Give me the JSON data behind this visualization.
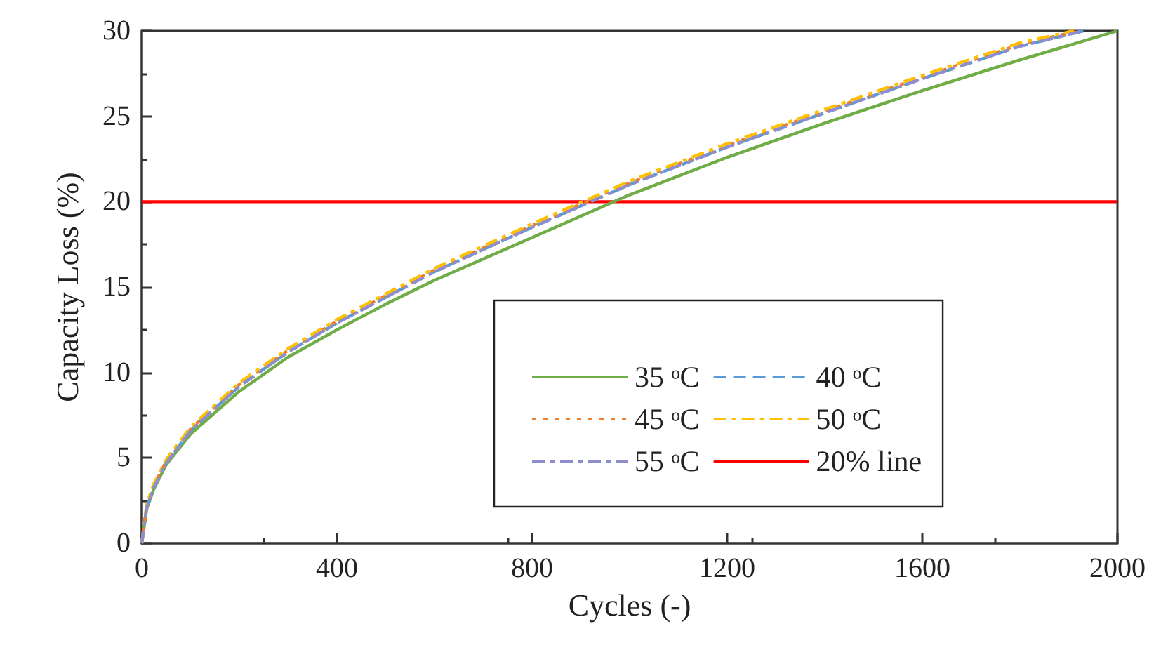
{
  "chart_data": {
    "type": "line",
    "xlabel": "Cycles (-)",
    "ylabel": "Capacity Loss (%)",
    "xlim": [
      0,
      2000
    ],
    "xticks": [
      0,
      400,
      800,
      1200,
      1600,
      2000
    ],
    "ylim": [
      0,
      30
    ],
    "yticks": [
      0,
      5,
      10,
      15,
      20,
      25,
      30
    ],
    "grid": false,
    "legend": "bottom right",
    "marker": "none",
    "series": [
      {
        "name": "35 ᵒC",
        "color": "#70ad47",
        "line_style": "solid",
        "x": [
          0,
          10,
          25,
          50,
          100,
          200,
          300,
          400,
          500,
          600,
          800,
          1000,
          1200,
          1400,
          1600,
          1800,
          2000
        ],
        "values": [
          0,
          2.0,
          3.2,
          4.6,
          6.4,
          8.9,
          10.9,
          12.5,
          14.0,
          15.4,
          17.9,
          20.4,
          22.6,
          24.6,
          26.5,
          28.3,
          30
        ]
      },
      {
        "name": "40 ᵒC",
        "color": "#5b9bd5",
        "line_style": "dashed",
        "x": [
          0,
          10,
          25,
          50,
          100,
          200,
          300,
          400,
          500,
          600,
          800,
          1000,
          1200,
          1400,
          1600,
          1800,
          1930
        ],
        "values": [
          0,
          2.1,
          3.3,
          4.7,
          6.6,
          9.2,
          11.2,
          12.9,
          14.4,
          15.9,
          18.5,
          21.0,
          23.2,
          25.2,
          27.2,
          29.1,
          30
        ]
      },
      {
        "name": "45 ᵒC",
        "color": "#ed7d31",
        "line_style": "dotted",
        "x": [
          0,
          10,
          25,
          50,
          100,
          200,
          300,
          400,
          500,
          600,
          800,
          1000,
          1200,
          1400,
          1600,
          1800,
          1920
        ],
        "values": [
          0,
          2.2,
          3.4,
          4.8,
          6.7,
          9.3,
          11.3,
          13.0,
          14.5,
          16.0,
          18.6,
          21.1,
          23.3,
          25.3,
          27.3,
          29.2,
          30
        ]
      },
      {
        "name": "50 ᵒC",
        "color": "#ffc000",
        "line_style": "dashdot",
        "x": [
          0,
          10,
          25,
          50,
          100,
          200,
          300,
          400,
          500,
          600,
          800,
          1000,
          1200,
          1400,
          1600,
          1800,
          1910
        ],
        "values": [
          0,
          2.3,
          3.5,
          4.9,
          6.8,
          9.4,
          11.4,
          13.1,
          14.6,
          16.1,
          18.7,
          21.2,
          23.4,
          25.4,
          27.4,
          29.3,
          30
        ]
      },
      {
        "name": "55 ᵒC",
        "color": "#8e8ecf",
        "line_style": "dashdot",
        "x": [
          0,
          10,
          25,
          50,
          100,
          200,
          300,
          400,
          500,
          600,
          800,
          1000,
          1200,
          1400,
          1600,
          1800,
          1930
        ],
        "values": [
          0,
          2.1,
          3.3,
          4.7,
          6.6,
          9.2,
          11.2,
          12.9,
          14.4,
          15.9,
          18.5,
          21.0,
          23.2,
          25.2,
          27.2,
          29.1,
          30
        ]
      },
      {
        "name": "20% line",
        "color": "#ff0000",
        "line_style": "solid",
        "x": [
          0,
          2000
        ],
        "values": [
          20,
          20
        ]
      }
    ]
  }
}
